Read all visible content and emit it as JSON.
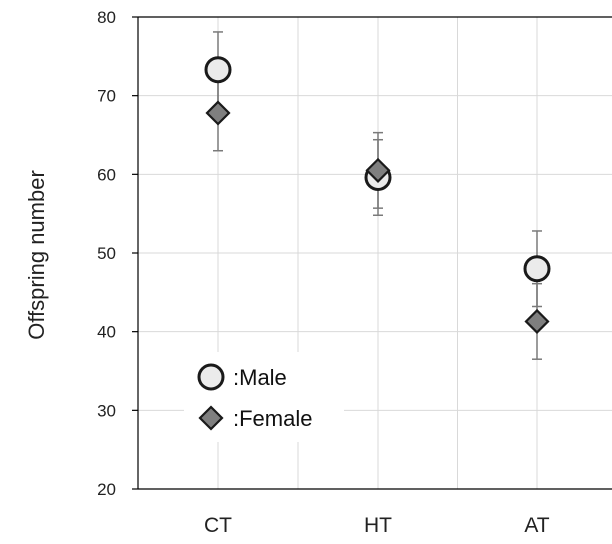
{
  "chart_data": {
    "type": "scatter",
    "title": "",
    "xlabel": "",
    "ylabel": "Offspring number",
    "categories": [
      "CT",
      "HT",
      "AT"
    ],
    "ylim": [
      20,
      80
    ],
    "yticks": [
      20,
      30,
      40,
      50,
      60,
      70,
      80
    ],
    "grid": true,
    "legend_position": "bottom-left",
    "series": [
      {
        "name": ":Male",
        "marker": "circle",
        "fill": "#ebebeb",
        "stroke": "#1a1a1a",
        "values": [
          73.3,
          59.6,
          48.0
        ],
        "errors": [
          4.8,
          4.8,
          4.8
        ]
      },
      {
        "name": ":Female",
        "marker": "diamond",
        "fill": "#7f7f7f",
        "stroke": "#1a1a1a",
        "values": [
          67.8,
          60.5,
          41.3
        ],
        "errors": [
          4.8,
          4.8,
          4.8
        ]
      }
    ]
  },
  "colors": {
    "axis": "#000000",
    "grid": "#d9d9d9",
    "error_bar": "#7a7a7a"
  }
}
